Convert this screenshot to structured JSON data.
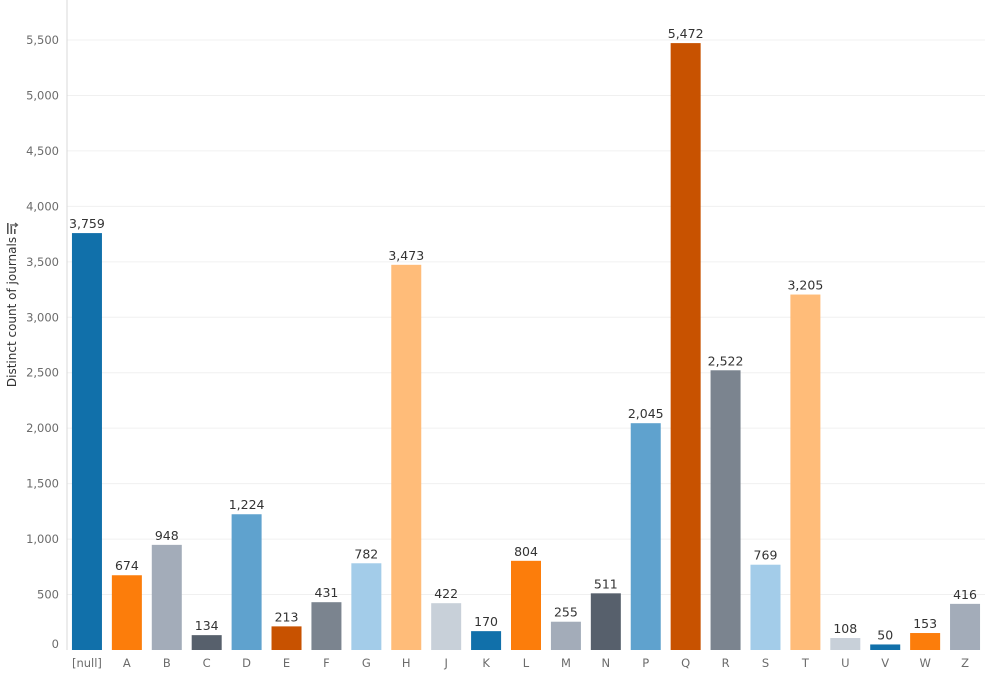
{
  "chart_data": {
    "type": "bar",
    "title": "",
    "xlabel": "",
    "ylabel": "Distinct count of journals",
    "ylim": [
      0,
      5500
    ],
    "yticks": [
      0,
      500,
      1000,
      1500,
      2000,
      2500,
      3000,
      3500,
      4000,
      4500,
      5000,
      5500
    ],
    "ytick_labels": [
      "0",
      "500",
      "1,000",
      "1,500",
      "2,000",
      "2,500",
      "3,000",
      "3,500",
      "4,000",
      "4,500",
      "5,000",
      "5,500"
    ],
    "grid": true,
    "sort_icon": "sort-descending-icon",
    "categories": [
      "[null]",
      "A",
      "B",
      "C",
      "D",
      "E",
      "F",
      "G",
      "H",
      "J",
      "K",
      "L",
      "M",
      "N",
      "P",
      "Q",
      "R",
      "S",
      "T",
      "U",
      "V",
      "W",
      "Z"
    ],
    "values": [
      3759,
      674,
      948,
      134,
      1224,
      213,
      431,
      782,
      3473,
      422,
      170,
      804,
      255,
      511,
      2045,
      5472,
      2522,
      769,
      3205,
      108,
      50,
      153,
      416
    ],
    "value_labels": [
      "3,759",
      "674",
      "948",
      "134",
      "1,224",
      "213",
      "431",
      "782",
      "3,473",
      "422",
      "170",
      "804",
      "255",
      "511",
      "2,045",
      "5,472",
      "2,522",
      "769",
      "3,205",
      "108",
      "50",
      "153",
      "416"
    ],
    "colors": [
      "#1170aa",
      "#fc7d0b",
      "#a3acb9",
      "#57606c",
      "#5fa2ce",
      "#c85200",
      "#7b848f",
      "#a3cce9",
      "#ffbc79",
      "#c8d0d9",
      "#1170aa",
      "#fc7d0b",
      "#a3acb9",
      "#57606c",
      "#5fa2ce",
      "#c85200",
      "#7b848f",
      "#a3cce9",
      "#ffbc79",
      "#c8d0d9",
      "#1170aa",
      "#fc7d0b",
      "#a3acb9"
    ]
  }
}
